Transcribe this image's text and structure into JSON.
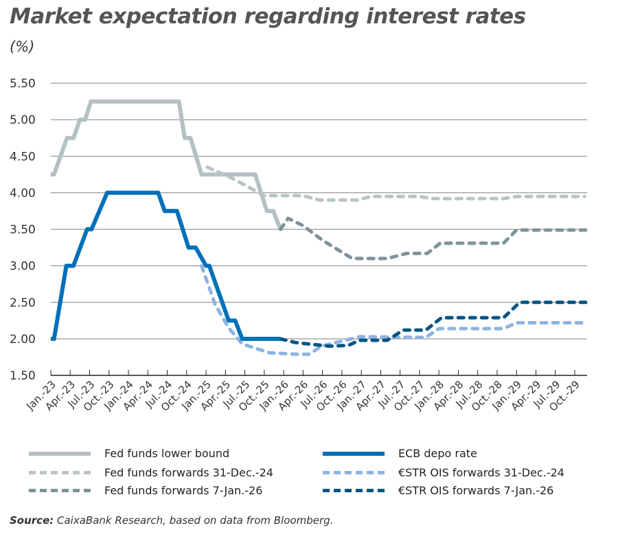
{
  "chart_data": {
    "type": "line",
    "title": "Market expectation regarding interest rates",
    "ylabel": "(%)",
    "xlabel": "",
    "ylim": [
      1.5,
      5.5
    ],
    "yticks": [
      "1.50",
      "2.00",
      "2.50",
      "3.00",
      "3.50",
      "4.00",
      "4.50",
      "5.00",
      "5.50"
    ],
    "x_unit": "months since Jan-23",
    "xticks": [
      "Jan.-23",
      "Apr.-23",
      "Jul.-23",
      "Oct.-23",
      "Jan.-24",
      "Apr.-24",
      "Jul.-24",
      "Oct.-24",
      "Jan.-25",
      "Apr.-25",
      "Jul.-25",
      "Oct.-25",
      "Jan.-26",
      "Apr.-26",
      "Jul.-26",
      "Oct.-26",
      "Jan.-27",
      "Apr.-27",
      "Jul.-27",
      "Oct.-27",
      "Jan.-28",
      "Apr.-28",
      "Jul.-28",
      "Oct.-28",
      "Jan.-29",
      "Apr.-29",
      "Jul.-29",
      "Oct.-29"
    ],
    "grid": true,
    "legend_position": "bottom",
    "series": [
      {
        "name": "Fed funds lower bound",
        "style": "solid",
        "color": "#b4c1c3",
        "points": [
          [
            0,
            4.25
          ],
          [
            0.5,
            4.25
          ],
          [
            2.5,
            4.75
          ],
          [
            3.5,
            4.75
          ],
          [
            4.5,
            5.0
          ],
          [
            5.3,
            5.0
          ],
          [
            6.2,
            5.25
          ],
          [
            19.8,
            5.25
          ],
          [
            20.7,
            4.75
          ],
          [
            21.6,
            4.75
          ],
          [
            23.3,
            4.25
          ],
          [
            31.6,
            4.25
          ],
          [
            33.4,
            3.75
          ],
          [
            34.4,
            3.75
          ],
          [
            35.5,
            3.5
          ]
        ]
      },
      {
        "name": "ECB depo rate",
        "style": "solid",
        "color": "#0070b8",
        "points": [
          [
            0,
            2.0
          ],
          [
            0.5,
            2.0
          ],
          [
            2.4,
            3.0
          ],
          [
            3.5,
            3.0
          ],
          [
            5.6,
            3.5
          ],
          [
            6.3,
            3.5
          ],
          [
            8.7,
            4.0
          ],
          [
            16.6,
            4.0
          ],
          [
            17.6,
            3.75
          ],
          [
            19.5,
            3.75
          ],
          [
            21.3,
            3.25
          ],
          [
            22.4,
            3.25
          ],
          [
            24.0,
            3.0
          ],
          [
            24.5,
            3.0
          ],
          [
            27.5,
            2.25
          ],
          [
            28.5,
            2.25
          ],
          [
            29.6,
            2.0
          ],
          [
            35.5,
            2.0
          ]
        ]
      },
      {
        "name": "Fed funds forwards 31-Dec.-24",
        "style": "dashed",
        "color": "#b8c4c5",
        "points": [
          [
            24.2,
            4.35
          ],
          [
            28,
            4.2
          ],
          [
            33,
            3.96
          ],
          [
            39,
            3.96
          ],
          [
            41.5,
            3.9
          ],
          [
            47.5,
            3.9
          ],
          [
            49.5,
            3.95
          ],
          [
            57,
            3.95
          ],
          [
            59,
            3.92
          ],
          [
            70,
            3.92
          ],
          [
            72,
            3.95
          ],
          [
            82.5,
            3.95
          ]
        ]
      },
      {
        "name": "€STR OIS forwards 31-Dec.-24",
        "style": "dashed",
        "color": "#8db3e2",
        "points": [
          [
            23.3,
            3.0
          ],
          [
            25.4,
            2.47
          ],
          [
            27.5,
            2.15
          ],
          [
            29.6,
            1.93
          ],
          [
            33.8,
            1.81
          ],
          [
            38,
            1.79
          ],
          [
            40,
            1.79
          ],
          [
            41.8,
            1.9
          ],
          [
            47.8,
            2.03
          ],
          [
            58,
            2.02
          ],
          [
            60,
            2.14
          ],
          [
            70,
            2.14
          ],
          [
            72,
            2.22
          ],
          [
            82.6,
            2.22
          ]
        ]
      },
      {
        "name": "Fed funds forwards 7-Jan.-26",
        "style": "dashed",
        "color": "#7f939a",
        "points": [
          [
            35.5,
            3.5
          ],
          [
            36.7,
            3.65
          ],
          [
            39,
            3.55
          ],
          [
            42,
            3.35
          ],
          [
            46.6,
            3.1
          ],
          [
            52,
            3.1
          ],
          [
            55,
            3.17
          ],
          [
            58.2,
            3.17
          ],
          [
            60.2,
            3.31
          ],
          [
            70,
            3.31
          ],
          [
            72,
            3.49
          ],
          [
            82.7,
            3.49
          ]
        ]
      },
      {
        "name": "€STR OIS forwards 7-Jan.-26",
        "style": "dashed",
        "color": "#005582",
        "points": [
          [
            35.5,
            2.0
          ],
          [
            37.8,
            1.95
          ],
          [
            43,
            1.9
          ],
          [
            46,
            1.91
          ],
          [
            47.7,
            1.98
          ],
          [
            52,
            1.98
          ],
          [
            54.5,
            2.12
          ],
          [
            58,
            2.12
          ],
          [
            60.4,
            2.29
          ],
          [
            70,
            2.29
          ],
          [
            72.5,
            2.5
          ],
          [
            82.7,
            2.5
          ]
        ]
      }
    ]
  },
  "legend": [
    {
      "label": "Fed funds lower bound"
    },
    {
      "label": "ECB depo rate"
    },
    {
      "label": "Fed funds forwards 31-Dec.-24"
    },
    {
      "label": "€STR OIS forwards 31-Dec.-24"
    },
    {
      "label": "Fed funds forwards 7-Jan.-26"
    },
    {
      "label": "€STR OIS forwards 7-Jan.-26"
    }
  ],
  "source": {
    "label": "Source:",
    "text": " CaixaBank Research, based on data from Bloomberg."
  }
}
